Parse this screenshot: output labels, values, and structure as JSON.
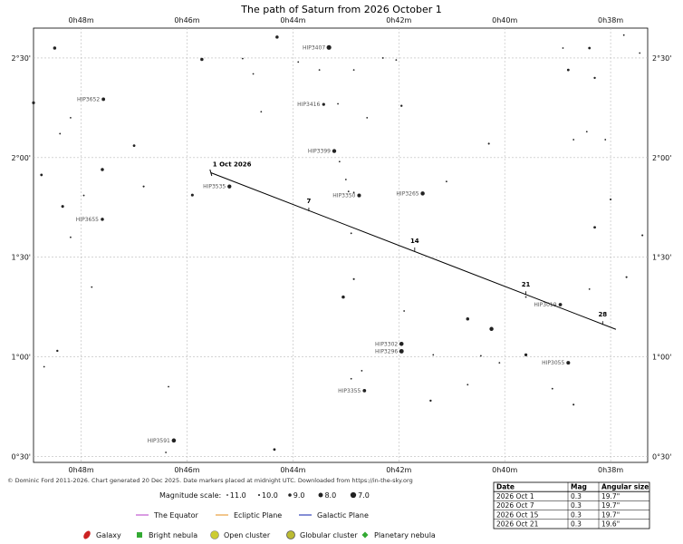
{
  "chart_data": {
    "type": "scatter",
    "title": "The path of Saturn from 2026 October 1",
    "x_axis": {
      "label": "",
      "unit": "right ascension (minutes, decreasing to the right)",
      "range_min": [
        48.9,
        37.3
      ],
      "ticks": [
        {
          "value": 48,
          "label": "0h48m"
        },
        {
          "value": 46,
          "label": "0h46m"
        },
        {
          "value": 44,
          "label": "0h44m"
        },
        {
          "value": 42,
          "label": "0h42m"
        },
        {
          "value": 40,
          "label": "0h40m"
        },
        {
          "value": 38,
          "label": "0h38m"
        }
      ]
    },
    "y_axis": {
      "label": "",
      "unit": "declination (degrees)",
      "range": [
        0.47,
        2.65
      ],
      "ticks": [
        {
          "value": 2.5,
          "label": "2°30'"
        },
        {
          "value": 2.0,
          "label": "2°00'"
        },
        {
          "value": 1.5,
          "label": "1°30'"
        },
        {
          "value": 1.0,
          "label": "1°00'"
        },
        {
          "value": 0.5,
          "label": "0°30'"
        }
      ]
    },
    "grid": true,
    "path": {
      "start": {
        "ra": 45.55,
        "dec": 1.924
      },
      "end": {
        "ra": 37.9,
        "dec": 1.138
      },
      "markers": [
        {
          "label": "1 Oct 2026",
          "ra": 45.55,
          "dec": 1.924
        },
        {
          "label": "7",
          "ra": 43.7,
          "dec": 1.74
        },
        {
          "label": "14",
          "ra": 41.7,
          "dec": 1.54
        },
        {
          "label": "21",
          "ra": 39.6,
          "dec": 1.32
        },
        {
          "label": "28",
          "ra": 38.15,
          "dec": 1.17
        }
      ]
    },
    "stars": [
      {
        "ra": 43.32,
        "dec": 2.553,
        "mag": 7.8,
        "label": "HIP3407"
      },
      {
        "ra": 47.58,
        "dec": 2.293,
        "mag": 8.8,
        "label": "HIP3652"
      },
      {
        "ra": 43.42,
        "dec": 2.267,
        "mag": 9.2,
        "label": "HIP3416"
      },
      {
        "ra": 43.22,
        "dec": 2.033,
        "mag": 8.4,
        "label": "HIP3399"
      },
      {
        "ra": 45.2,
        "dec": 1.855,
        "mag": 8.4,
        "label": "HIP3535"
      },
      {
        "ra": 41.55,
        "dec": 1.82,
        "mag": 8.3,
        "label": "HIP3265"
      },
      {
        "ra": 42.75,
        "dec": 1.81,
        "mag": 8.6,
        "label": "HIP3350"
      },
      {
        "ra": 47.6,
        "dec": 1.69,
        "mag": 9.0,
        "label": "HIP3655"
      },
      {
        "ra": 38.95,
        "dec": 1.262,
        "mag": 8.8,
        "label": "HIP3019"
      },
      {
        "ra": 41.95,
        "dec": 1.065,
        "mag": 8.2,
        "label": "HIP3302"
      },
      {
        "ra": 41.95,
        "dec": 1.028,
        "mag": 8.0,
        "label": "HIP3296"
      },
      {
        "ra": 38.8,
        "dec": 0.97,
        "mag": 8.6,
        "label": "HIP3055"
      },
      {
        "ra": 42.65,
        "dec": 0.83,
        "mag": 8.8,
        "label": "HIP3355"
      },
      {
        "ra": 46.25,
        "dec": 0.58,
        "mag": 8.2,
        "label": "HIP3591"
      },
      {
        "ra": 45.72,
        "dec": 2.493,
        "mag": 9.0,
        "label": ""
      },
      {
        "ra": 44.3,
        "dec": 2.605,
        "mag": 9.0,
        "label": ""
      },
      {
        "ra": 48.5,
        "dec": 2.55,
        "mag": 9.0,
        "label": ""
      },
      {
        "ra": 44.95,
        "dec": 2.497,
        "mag": 10.5,
        "label": ""
      },
      {
        "ra": 43.9,
        "dec": 2.48,
        "mag": 10.2,
        "label": ""
      },
      {
        "ra": 48.2,
        "dec": 2.2,
        "mag": 10.3,
        "label": ""
      },
      {
        "ra": 48.4,
        "dec": 2.12,
        "mag": 10.3,
        "label": ""
      },
      {
        "ra": 47.0,
        "dec": 2.06,
        "mag": 9.5,
        "label": ""
      },
      {
        "ra": 47.6,
        "dec": 1.94,
        "mag": 9.0,
        "label": ""
      },
      {
        "ra": 46.82,
        "dec": 1.855,
        "mag": 10.0,
        "label": ""
      },
      {
        "ra": 45.9,
        "dec": 1.812,
        "mag": 9.3,
        "label": ""
      },
      {
        "ra": 47.95,
        "dec": 1.81,
        "mag": 10.3,
        "label": ""
      },
      {
        "ra": 48.9,
        "dec": 2.275,
        "mag": 9.2,
        "label": ""
      },
      {
        "ra": 48.75,
        "dec": 1.913,
        "mag": 9.5,
        "label": ""
      },
      {
        "ra": 48.35,
        "dec": 1.755,
        "mag": 9.3,
        "label": ""
      },
      {
        "ra": 48.2,
        "dec": 1.6,
        "mag": 10.5,
        "label": ""
      },
      {
        "ra": 44.75,
        "dec": 2.42,
        "mag": 10.5,
        "label": ""
      },
      {
        "ra": 44.6,
        "dec": 2.23,
        "mag": 10.3,
        "label": ""
      },
      {
        "ra": 43.5,
        "dec": 2.44,
        "mag": 10.3,
        "label": ""
      },
      {
        "ra": 43.15,
        "dec": 2.27,
        "mag": 10.5,
        "label": ""
      },
      {
        "ra": 42.85,
        "dec": 2.44,
        "mag": 10.3,
        "label": ""
      },
      {
        "ra": 42.6,
        "dec": 2.2,
        "mag": 10.5,
        "label": ""
      },
      {
        "ra": 42.3,
        "dec": 2.5,
        "mag": 10.5,
        "label": ""
      },
      {
        "ra": 42.05,
        "dec": 2.49,
        "mag": 10.5,
        "label": ""
      },
      {
        "ra": 41.95,
        "dec": 2.26,
        "mag": 9.8,
        "label": ""
      },
      {
        "ra": 43.12,
        "dec": 1.98,
        "mag": 10.5,
        "label": ""
      },
      {
        "ra": 43.0,
        "dec": 1.89,
        "mag": 10.5,
        "label": ""
      },
      {
        "ra": 42.95,
        "dec": 1.83,
        "mag": 10.2,
        "label": ""
      },
      {
        "ra": 42.85,
        "dec": 1.825,
        "mag": 10.3,
        "label": ""
      },
      {
        "ra": 41.1,
        "dec": 1.88,
        "mag": 10.5,
        "label": ""
      },
      {
        "ra": 40.3,
        "dec": 2.07,
        "mag": 10.0,
        "label": ""
      },
      {
        "ra": 38.9,
        "dec": 2.55,
        "mag": 10.5,
        "label": ""
      },
      {
        "ra": 38.4,
        "dec": 2.55,
        "mag": 9.5,
        "label": ""
      },
      {
        "ra": 37.75,
        "dec": 2.615,
        "mag": 10.5,
        "label": ""
      },
      {
        "ra": 37.45,
        "dec": 2.525,
        "mag": 10.5,
        "label": ""
      },
      {
        "ra": 38.8,
        "dec": 2.44,
        "mag": 9.5,
        "label": ""
      },
      {
        "ra": 38.3,
        "dec": 2.4,
        "mag": 9.8,
        "label": ""
      },
      {
        "ra": 38.45,
        "dec": 2.13,
        "mag": 10.3,
        "label": ""
      },
      {
        "ra": 38.7,
        "dec": 2.09,
        "mag": 10.5,
        "label": ""
      },
      {
        "ra": 38.1,
        "dec": 2.09,
        "mag": 10.2,
        "label": ""
      },
      {
        "ra": 38.0,
        "dec": 1.79,
        "mag": 10.0,
        "label": ""
      },
      {
        "ra": 38.3,
        "dec": 1.65,
        "mag": 9.5,
        "label": ""
      },
      {
        "ra": 37.4,
        "dec": 1.61,
        "mag": 10.0,
        "label": ""
      },
      {
        "ra": 37.7,
        "dec": 1.4,
        "mag": 10.0,
        "label": ""
      },
      {
        "ra": 38.4,
        "dec": 1.34,
        "mag": 10.5,
        "label": ""
      },
      {
        "ra": 39.6,
        "dec": 1.3,
        "mag": 10.5,
        "label": ""
      },
      {
        "ra": 42.9,
        "dec": 1.62,
        "mag": 10.5,
        "label": ""
      },
      {
        "ra": 42.85,
        "dec": 1.39,
        "mag": 10.0,
        "label": ""
      },
      {
        "ra": 43.05,
        "dec": 1.3,
        "mag": 9.0,
        "label": ""
      },
      {
        "ra": 41.9,
        "dec": 1.23,
        "mag": 10.5,
        "label": ""
      },
      {
        "ra": 40.7,
        "dec": 1.19,
        "mag": 9.0,
        "label": ""
      },
      {
        "ra": 40.25,
        "dec": 1.14,
        "mag": 8.3,
        "label": ""
      },
      {
        "ra": 39.6,
        "dec": 1.01,
        "mag": 9.2,
        "label": ""
      },
      {
        "ra": 40.45,
        "dec": 1.005,
        "mag": 10.5,
        "label": ""
      },
      {
        "ra": 41.35,
        "dec": 1.01,
        "mag": 10.3,
        "label": ""
      },
      {
        "ra": 40.1,
        "dec": 0.97,
        "mag": 10.3,
        "label": ""
      },
      {
        "ra": 42.7,
        "dec": 0.93,
        "mag": 10.3,
        "label": ""
      },
      {
        "ra": 42.9,
        "dec": 0.89,
        "mag": 10.3,
        "label": ""
      },
      {
        "ra": 40.7,
        "dec": 0.86,
        "mag": 10.3,
        "label": ""
      },
      {
        "ra": 41.4,
        "dec": 0.78,
        "mag": 9.8,
        "label": ""
      },
      {
        "ra": 39.1,
        "dec": 0.84,
        "mag": 10.5,
        "label": ""
      },
      {
        "ra": 38.7,
        "dec": 0.76,
        "mag": 10.0,
        "label": ""
      },
      {
        "ra": 46.35,
        "dec": 0.85,
        "mag": 10.5,
        "label": ""
      },
      {
        "ra": 46.4,
        "dec": 0.52,
        "mag": 10.3,
        "label": ""
      },
      {
        "ra": 44.35,
        "dec": 0.535,
        "mag": 9.5,
        "label": ""
      },
      {
        "ra": 48.7,
        "dec": 0.95,
        "mag": 10.3,
        "label": ""
      },
      {
        "ra": 48.45,
        "dec": 1.03,
        "mag": 9.8,
        "label": ""
      },
      {
        "ra": 47.8,
        "dec": 1.35,
        "mag": 10.5,
        "label": ""
      }
    ]
  },
  "footer": {
    "credit": "© Dominic Ford 2011-2026. Chart generated 20 Dec 2025. Date markers placed at midnight UTC. Downloaded from https://in-the-sky.org"
  },
  "legend": {
    "magnitude_title": "Magnitude scale:",
    "magnitudes": [
      "11.0",
      "10.0",
      "9.0",
      "8.0",
      "7.0"
    ],
    "lines": [
      {
        "label": "The Equator",
        "color": "#c05ad0"
      },
      {
        "label": "Ecliptic Plane",
        "color": "#e8a040"
      },
      {
        "label": "Galactic Plane",
        "color": "#3344bb"
      }
    ],
    "objects": [
      {
        "label": "Galaxy",
        "color": "#cc2222"
      },
      {
        "label": "Bright nebula",
        "color": "#33aa33"
      },
      {
        "label": "Open cluster",
        "color": "#cccc33"
      },
      {
        "label": "Globular cluster",
        "color": "#bbbb33"
      },
      {
        "label": "Planetary nebula",
        "color": "#33aa33"
      }
    ]
  },
  "table": {
    "headers": [
      "Date",
      "Mag",
      "Angular size"
    ],
    "rows": [
      [
        "2026 Oct 1",
        "0.3",
        "19.7\""
      ],
      [
        "2026 Oct 7",
        "0.3",
        "19.7\""
      ],
      [
        "2026 Oct 15",
        "0.3",
        "19.7\""
      ],
      [
        "2026 Oct 21",
        "0.3",
        "19.6\""
      ]
    ]
  }
}
